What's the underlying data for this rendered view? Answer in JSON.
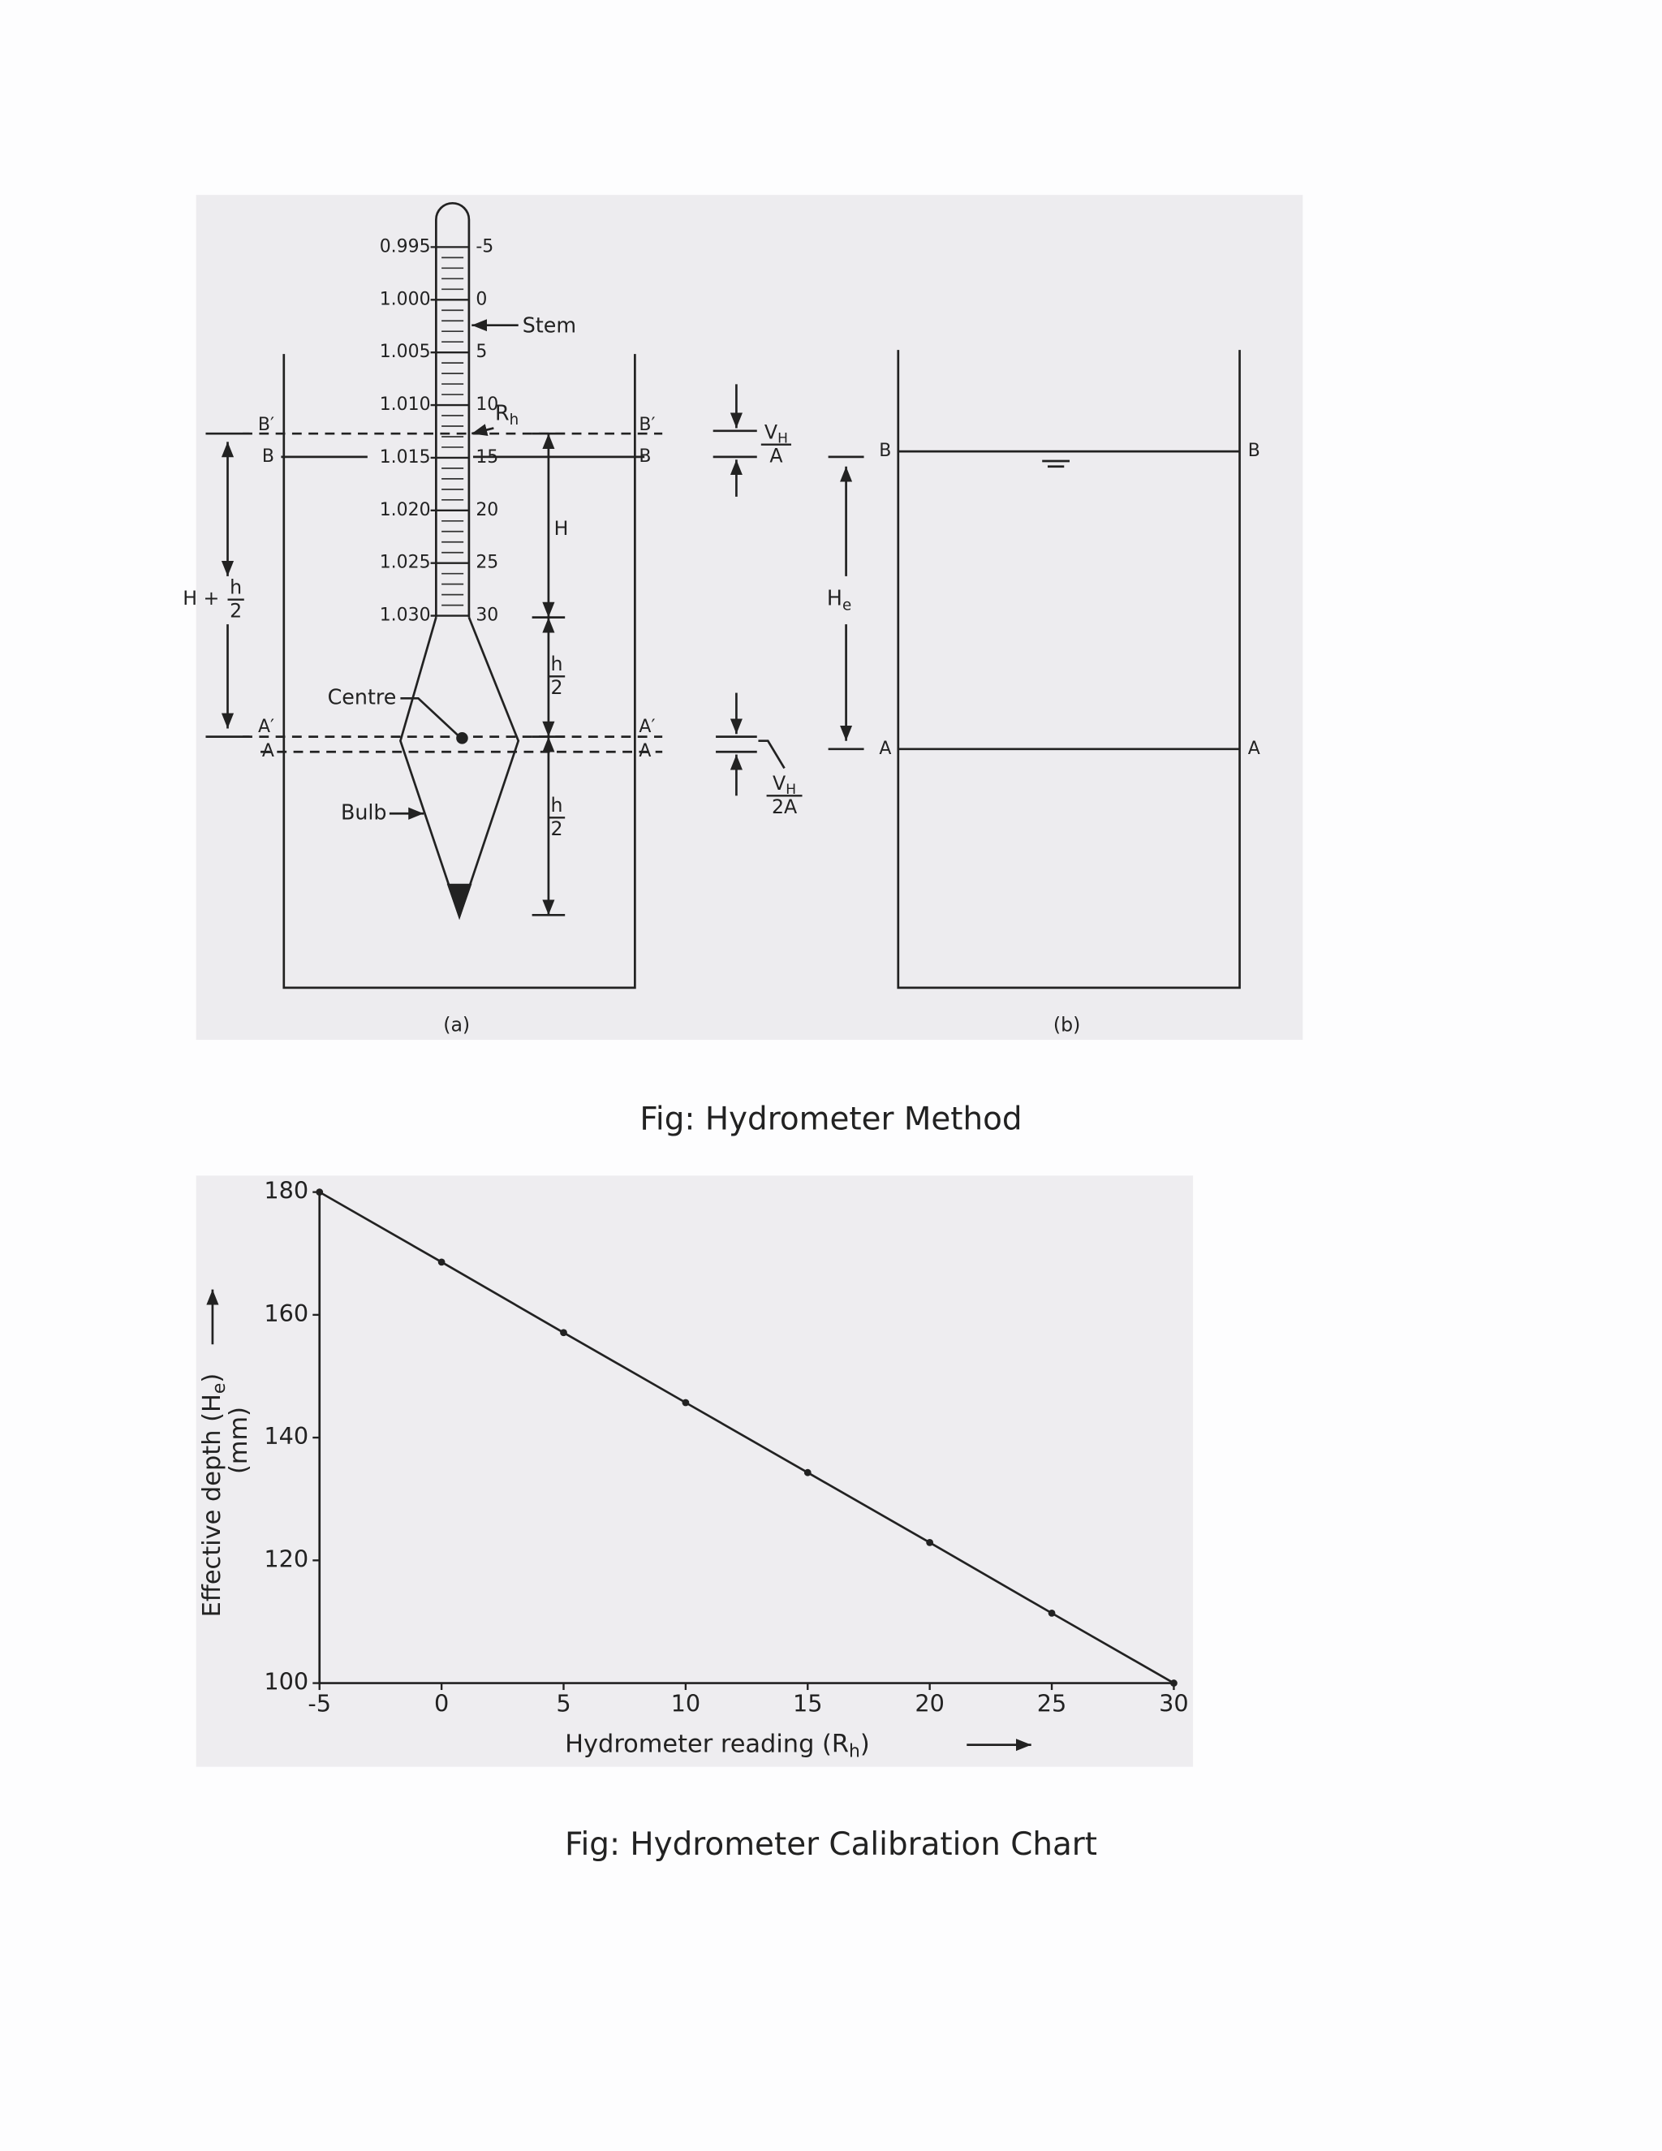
{
  "figure_1": {
    "panel_a": {
      "sg_scale": [
        "0.995",
        "1.000",
        "1.005",
        "1.010",
        "1.015",
        "1.020",
        "1.025",
        "1.030"
      ],
      "rh_scale": [
        "-5",
        "0",
        "5",
        "10",
        "15",
        "20",
        "25",
        "30"
      ],
      "stem_label": "Stem",
      "rh_label": {
        "main": "R",
        "sub": "h"
      },
      "levels_left": [
        "B′",
        "B",
        "A′",
        "A"
      ],
      "levels_right": [
        "B′",
        "B",
        "A′",
        "A"
      ],
      "h_label": "H",
      "half_h_upper": {
        "num": "h",
        "den": "2"
      },
      "half_h_lower": {
        "num": "h",
        "den": "2"
      },
      "total": {
        "lead": "H +",
        "num": "h",
        "den": "2"
      },
      "centre_label": "Centre",
      "bulb_label": "Bulb",
      "panel_label": "(a)"
    },
    "volume_labels": {
      "upper": {
        "num": "V",
        "num_sub": "H",
        "den": "A"
      },
      "lower": {
        "num": "V",
        "num_sub": "H",
        "den": "2A"
      }
    },
    "panel_b": {
      "levels_left": [
        "B",
        "A"
      ],
      "levels_right": [
        "B",
        "A"
      ],
      "he": {
        "main": "H",
        "sub": "e"
      },
      "panel_label": "(b)"
    },
    "caption": "Fig: Hydrometer Method"
  },
  "chart_data": {
    "type": "line",
    "x": [
      -5,
      0,
      5,
      10,
      15,
      20,
      25,
      30
    ],
    "series": [
      {
        "color": "#222222",
        "values": [
          180,
          168.6,
          157.1,
          145.7,
          134.3,
          122.9,
          111.4,
          100
        ]
      }
    ],
    "xlim": [
      -5,
      30
    ],
    "ylim": [
      100,
      180
    ],
    "xticks": [
      -5,
      0,
      5,
      10,
      15,
      20,
      25,
      30
    ],
    "yticks": [
      100,
      120,
      140,
      160,
      180
    ],
    "xlabel": {
      "text": "Hydrometer reading (R",
      "sub": "h",
      "end": ")"
    },
    "ylabel": {
      "text": "Effective depth (H",
      "sub": "e",
      "end": ")",
      "unit": "(mm)"
    }
  },
  "figure_2": {
    "caption": "Fig: Hydrometer Calibration Chart"
  }
}
